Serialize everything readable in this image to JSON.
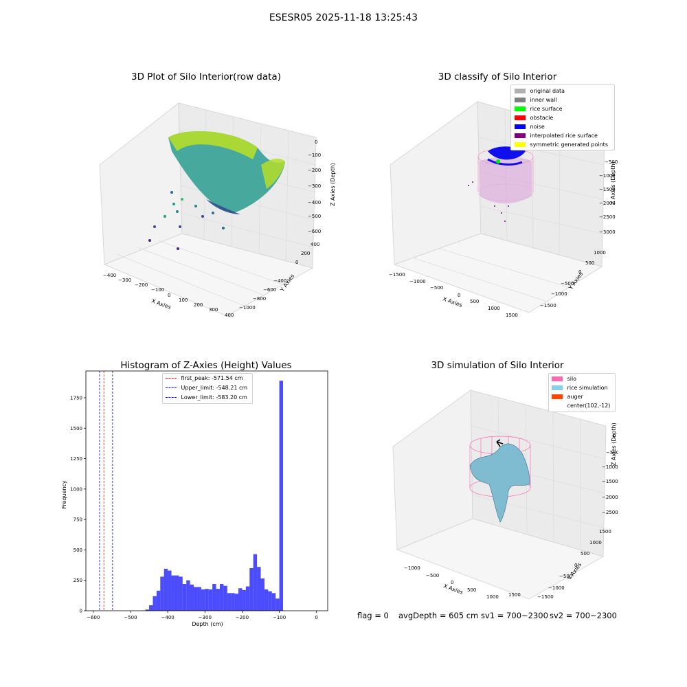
{
  "figure": {
    "suptitle": "ESESR05 2025-11-18 13:25:43"
  },
  "panels": {
    "raw": {
      "title": "3D Plot of Silo Interior(row data)",
      "xlabel": "X Axies",
      "ylabel": "Y Axies",
      "zlabel": "Z Axies (Depth)"
    },
    "classify": {
      "title": "3D classify of Silo Interior",
      "xlabel": "X Axies",
      "ylabel": "Y Axies",
      "zlabel": "Z Axies (Depth)"
    },
    "simulation": {
      "title": "3D simulation of Silo Interior",
      "xlabel": "X Axies",
      "ylabel": "Y Axies",
      "zlabel": "Z Axies (Depth)"
    }
  },
  "status_line": {
    "flag": "flag = 0",
    "avg_depth": "avgDepth = 605 cm",
    "sv1": "sv1 = 700~2300",
    "sv2": "sv2 = 700~2300"
  },
  "chart_data": [
    {
      "type": "scatter",
      "title": "3D Plot of Silo Interior(row data)",
      "xlabel": "X Axies",
      "ylabel": "Y Axies",
      "zlabel": "Z Axies (Depth)",
      "xticks": [
        "−400",
        "−300",
        "−200",
        "−100",
        "0",
        "100",
        "200",
        "300",
        "400"
      ],
      "yticks": [
        "400",
        "200",
        "0",
        "−200",
        "−400",
        "−600",
        "−800",
        "−1000"
      ],
      "zticks": [
        "0",
        "−100",
        "−200",
        "−300",
        "−400",
        "−500",
        "−600"
      ],
      "xlim": [
        -400,
        400
      ],
      "ylim": [
        -1000,
        400
      ],
      "zlim": [
        -600,
        0
      ]
    },
    {
      "type": "scatter",
      "title": "3D classify of Silo Interior",
      "xlabel": "X Axies",
      "ylabel": "Y Axies",
      "zlabel": "Z Axies (Depth)",
      "xticks": [
        "−1500",
        "−1000",
        "−500",
        "0",
        "500",
        "1000",
        "1500"
      ],
      "yticks": [
        "1000",
        "500",
        "0",
        "−500",
        "−1000",
        "−1500"
      ],
      "zticks": [
        "0",
        "−500",
        "−1000",
        "−1500",
        "−2000",
        "−2500",
        "−3000"
      ],
      "zticks_visible": [
        "−500",
        "−1000",
        "−1500",
        "−2000",
        "−2500",
        "−3000"
      ],
      "legend_placement": "top-right",
      "legend": [
        {
          "label": "original data",
          "color": "#b0b0b0"
        },
        {
          "label": "inner wall",
          "color": "#808080"
        },
        {
          "label": "rice surface",
          "color": "#00ff00"
        },
        {
          "label": "obstacle",
          "color": "#ff0000"
        },
        {
          "label": "noise",
          "color": "#0000ff"
        },
        {
          "label": "interpolated rice surface",
          "color": "#800080"
        },
        {
          "label": "symmetric generated points",
          "color": "#ffff00"
        }
      ]
    },
    {
      "type": "bar",
      "title": "Histogram of Z-Axies (Height) Values",
      "xlabel": "Depth (cm)",
      "ylabel": "Frequency",
      "xlim": [
        -620,
        30
      ],
      "ylim": [
        0,
        1970
      ],
      "xticks": [
        -600,
        -500,
        -400,
        -300,
        -200,
        -100,
        0
      ],
      "xtick_labels": [
        "−600",
        "−500",
        "−400",
        "−300",
        "−200",
        "−100",
        "0"
      ],
      "yticks": [
        0,
        250,
        500,
        750,
        1000,
        1250,
        1500,
        1750
      ],
      "bar_color": "#0000ff",
      "bins_start": -470,
      "bin_width": 10,
      "counts": [
        2,
        10,
        45,
        120,
        165,
        280,
        345,
        330,
        290,
        290,
        280,
        220,
        250,
        215,
        195,
        195,
        175,
        180,
        175,
        220,
        180,
        220,
        205,
        145,
        145,
        140,
        185,
        170,
        200,
        350,
        465,
        360,
        265,
        175,
        160,
        145,
        100,
        1890
      ],
      "legend_placement": "top-center",
      "vlines": [
        {
          "label": "first_peak: -571.54 cm",
          "x": -571.54,
          "color": "#ff0000"
        },
        {
          "label": "Upper_limit: -548.21 cm",
          "x": -548.21,
          "color": "#0000ff"
        },
        {
          "label": "Lower_limit: -583.20 cm",
          "x": -583.2,
          "color": "#0000ff"
        }
      ]
    },
    {
      "type": "area",
      "title": "3D simulation of Silo Interior",
      "xlabel": "X Axies",
      "ylabel": "Y Axies",
      "zlabel": "Z Axies (Depth)",
      "xticks": [
        "−1000",
        "−500",
        "0",
        "500",
        "1000",
        "1500"
      ],
      "yticks": [
        "1500",
        "1000",
        "500",
        "0",
        "−500",
        "−1000",
        "−1500"
      ],
      "zticks": [
        "0",
        "−500",
        "−1000",
        "−1500",
        "−2000",
        "−2500"
      ],
      "legend_placement": "top-right",
      "legend": [
        {
          "label": "silo",
          "color": "#ff69b4"
        },
        {
          "label": "rice simulation",
          "color": "#87ceeb"
        },
        {
          "label": "auger",
          "color": "#ff4500"
        },
        {
          "label": "center(102,-12)",
          "color": ""
        }
      ]
    }
  ]
}
